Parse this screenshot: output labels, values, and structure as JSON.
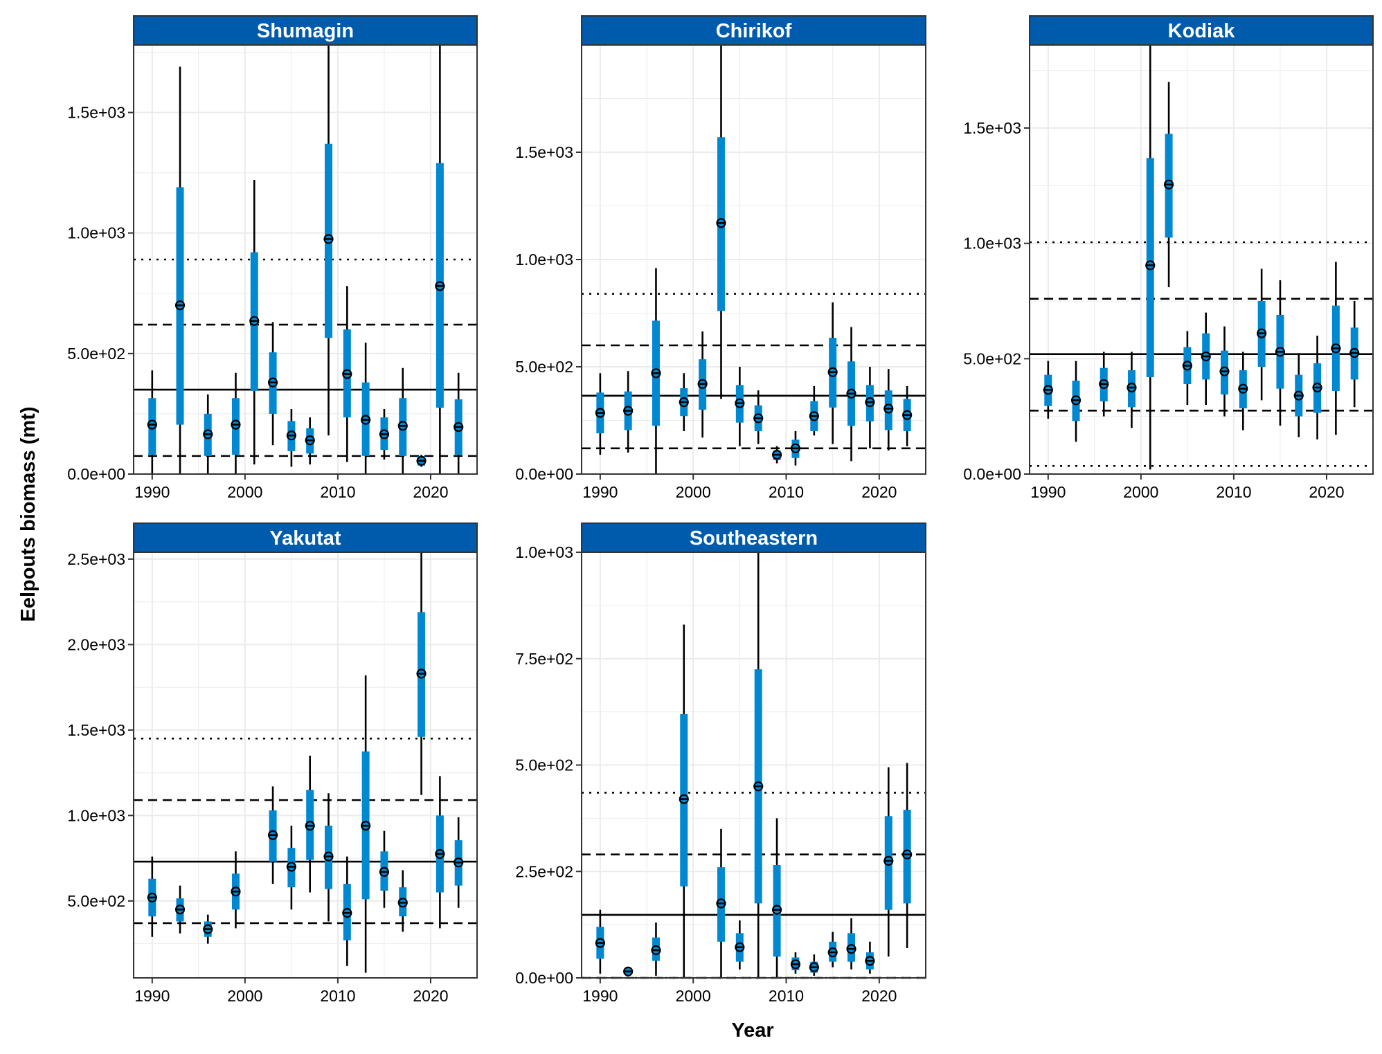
{
  "title": "",
  "xlabel": "Year",
  "ylabel": "Eelpouts biomass (mt)",
  "colors": {
    "strip": "#005BAC",
    "strip_text": "#ffffff",
    "ci": "#0088D1",
    "line": "#000000",
    "grid": "#EBEBEB"
  },
  "chart_data": [
    {
      "type": "errorbar",
      "panel": "Shumagin",
      "xlim": [
        1988,
        2025
      ],
      "ylim": [
        0,
        1780
      ],
      "xticks": [
        1990,
        2000,
        2010,
        2020
      ],
      "xtick_labels": [
        "1990",
        "2000",
        "2010",
        "2020"
      ],
      "yticks": [
        0,
        500,
        1000,
        1500
      ],
      "ytick_labels": [
        "0.0e+00",
        "5.0e+02",
        "1.0e+03",
        "1.5e+03"
      ],
      "reference_lines": {
        "mean": 350,
        "dashed": [
          75,
          620
        ],
        "dotted": [
          890
        ]
      },
      "x": [
        1990,
        1993,
        1996,
        1999,
        2001,
        2003,
        2005,
        2007,
        2009,
        2011,
        2013,
        2015,
        2017,
        2019,
        2021,
        2023
      ],
      "y": [
        205,
        700,
        165,
        205,
        635,
        380,
        160,
        140,
        975,
        415,
        225,
        165,
        200,
        55,
        780,
        195
      ],
      "ci_lo": [
        80,
        205,
        75,
        80,
        345,
        250,
        95,
        85,
        565,
        235,
        75,
        100,
        75,
        35,
        275,
        80
      ],
      "ci_hi": [
        315,
        1190,
        250,
        315,
        920,
        505,
        220,
        190,
        1370,
        600,
        380,
        235,
        315,
        75,
        1290,
        310
      ],
      "pi_lo": [
        0,
        0,
        0,
        0,
        40,
        120,
        30,
        40,
        160,
        50,
        0,
        60,
        0,
        30,
        0,
        0
      ],
      "pi_hi": [
        430,
        1690,
        330,
        420,
        1220,
        630,
        270,
        235,
        1780,
        780,
        545,
        270,
        440,
        80,
        1780,
        420
      ]
    },
    {
      "type": "errorbar",
      "panel": "Chirikof",
      "xlim": [
        1988,
        2025
      ],
      "ylim": [
        0,
        2000
      ],
      "xticks": [
        1990,
        2000,
        2010,
        2020
      ],
      "xtick_labels": [
        "1990",
        "2000",
        "2010",
        "2020"
      ],
      "yticks": [
        0,
        500,
        1000,
        1500
      ],
      "ytick_labels": [
        "0.0e+00",
        "5.0e+02",
        "1.0e+03",
        "1.5e+03"
      ],
      "reference_lines": {
        "mean": 365,
        "dashed": [
          120,
          600
        ],
        "dotted": [
          840
        ]
      },
      "x": [
        1990,
        1993,
        1996,
        1999,
        2001,
        2003,
        2005,
        2007,
        2009,
        2011,
        2013,
        2015,
        2017,
        2019,
        2021,
        2023
      ],
      "y": [
        285,
        295,
        470,
        335,
        420,
        1170,
        330,
        260,
        90,
        120,
        270,
        475,
        375,
        335,
        305,
        275
      ],
      "ci_lo": [
        190,
        205,
        225,
        270,
        300,
        760,
        240,
        200,
        65,
        75,
        200,
        310,
        225,
        245,
        205,
        200
      ],
      "ci_hi": [
        380,
        385,
        715,
        400,
        535,
        1570,
        415,
        320,
        110,
        160,
        340,
        635,
        525,
        415,
        390,
        350
      ],
      "pi_lo": [
        90,
        100,
        0,
        200,
        170,
        350,
        130,
        140,
        50,
        40,
        180,
        140,
        60,
        120,
        110,
        130
      ],
      "pi_hi": [
        470,
        480,
        960,
        470,
        665,
        2000,
        500,
        390,
        130,
        200,
        410,
        800,
        685,
        500,
        490,
        410
      ]
    },
    {
      "type": "errorbar",
      "panel": "Kodiak",
      "xlim": [
        1988,
        2025
      ],
      "ylim": [
        0,
        1860
      ],
      "xticks": [
        1990,
        2000,
        2010,
        2020
      ],
      "xtick_labels": [
        "1990",
        "2000",
        "2010",
        "2020"
      ],
      "yticks": [
        0,
        500,
        1000,
        1500
      ],
      "ytick_labels": [
        "0.0e+00",
        "5.0e+02",
        "1.0e+03",
        "1.5e+03"
      ],
      "reference_lines": {
        "mean": 520,
        "dashed": [
          275,
          760
        ],
        "dotted": [
          35,
          1005
        ]
      },
      "x": [
        1990,
        1993,
        1996,
        1999,
        2001,
        2003,
        2005,
        2007,
        2009,
        2011,
        2013,
        2015,
        2017,
        2019,
        2021,
        2023
      ],
      "y": [
        365,
        320,
        390,
        375,
        905,
        1255,
        470,
        510,
        445,
        370,
        610,
        530,
        340,
        375,
        545,
        525
      ],
      "ci_lo": [
        295,
        230,
        315,
        290,
        420,
        1025,
        390,
        410,
        345,
        285,
        465,
        370,
        250,
        265,
        360,
        410
      ],
      "ci_hi": [
        430,
        405,
        460,
        450,
        1370,
        1475,
        550,
        610,
        535,
        450,
        750,
        690,
        430,
        480,
        730,
        635
      ],
      "pi_lo": [
        240,
        140,
        250,
        200,
        20,
        810,
        300,
        300,
        250,
        190,
        320,
        210,
        160,
        150,
        170,
        290
      ],
      "pi_hi": [
        490,
        490,
        530,
        530,
        1860,
        1700,
        620,
        700,
        640,
        530,
        890,
        840,
        520,
        600,
        920,
        750
      ]
    },
    {
      "type": "errorbar",
      "panel": "Yakutat",
      "xlim": [
        1988,
        2025
      ],
      "ylim": [
        50,
        2540
      ],
      "xticks": [
        1990,
        2000,
        2010,
        2020
      ],
      "xtick_labels": [
        "1990",
        "2000",
        "2010",
        "2020"
      ],
      "yticks": [
        500,
        1000,
        1500,
        2000,
        2500
      ],
      "ytick_labels": [
        "5.0e+02",
        "1.0e+03",
        "1.5e+03",
        "2.0e+03",
        "2.5e+03"
      ],
      "reference_lines": {
        "mean": 730,
        "dashed": [
          370,
          1090
        ],
        "dotted": [
          1450
        ]
      },
      "x": [
        1990,
        1993,
        1996,
        1999,
        2003,
        2005,
        2007,
        2009,
        2011,
        2013,
        2015,
        2017,
        2019,
        2021,
        2023
      ],
      "y": [
        520,
        450,
        335,
        555,
        885,
        700,
        940,
        760,
        430,
        940,
        670,
        490,
        1830,
        775,
        725
      ],
      "ci_lo": [
        410,
        380,
        290,
        450,
        730,
        580,
        740,
        570,
        270,
        510,
        560,
        410,
        1460,
        550,
        590
      ],
      "ci_hi": [
        630,
        515,
        380,
        660,
        1030,
        810,
        1150,
        940,
        600,
        1375,
        790,
        580,
        2190,
        1000,
        855
      ],
      "pi_lo": [
        290,
        310,
        250,
        340,
        600,
        450,
        550,
        380,
        120,
        80,
        460,
        320,
        1120,
        340,
        460
      ],
      "pi_hi": [
        760,
        590,
        420,
        790,
        1170,
        940,
        1350,
        1130,
        760,
        1820,
        910,
        680,
        2540,
        1230,
        990
      ]
    },
    {
      "type": "errorbar",
      "panel": "Southeastern",
      "xlim": [
        1988,
        2025
      ],
      "ylim": [
        0,
        1000
      ],
      "xticks": [
        1990,
        2000,
        2010,
        2020
      ],
      "xtick_labels": [
        "1990",
        "2000",
        "2010",
        "2020"
      ],
      "yticks": [
        0,
        250,
        500,
        750,
        1000
      ],
      "ytick_labels": [
        "0.0e+00",
        "2.5e+02",
        "5.0e+02",
        "7.5e+02",
        "1.0e+03"
      ],
      "reference_lines": {
        "mean": 148,
        "dashed": [
          0,
          290
        ],
        "dotted": [
          0,
          435
        ]
      },
      "x": [
        1990,
        1993,
        1996,
        1999,
        2003,
        2005,
        2007,
        2009,
        2011,
        2013,
        2015,
        2017,
        2019,
        2021,
        2023
      ],
      "y": [
        82,
        15,
        65,
        420,
        175,
        72,
        450,
        160,
        32,
        25,
        60,
        68,
        40,
        275,
        290
      ],
      "ci_lo": [
        45,
        12,
        40,
        215,
        85,
        38,
        175,
        50,
        18,
        12,
        38,
        38,
        20,
        160,
        175
      ],
      "ci_hi": [
        120,
        18,
        95,
        620,
        260,
        105,
        725,
        265,
        48,
        38,
        85,
        105,
        60,
        380,
        395
      ],
      "pi_lo": [
        10,
        12,
        5,
        0,
        0,
        20,
        0,
        0,
        10,
        5,
        25,
        20,
        10,
        50,
        70
      ],
      "pi_hi": [
        160,
        18,
        130,
        830,
        350,
        135,
        1000,
        375,
        60,
        55,
        108,
        140,
        85,
        495,
        505
      ]
    }
  ]
}
